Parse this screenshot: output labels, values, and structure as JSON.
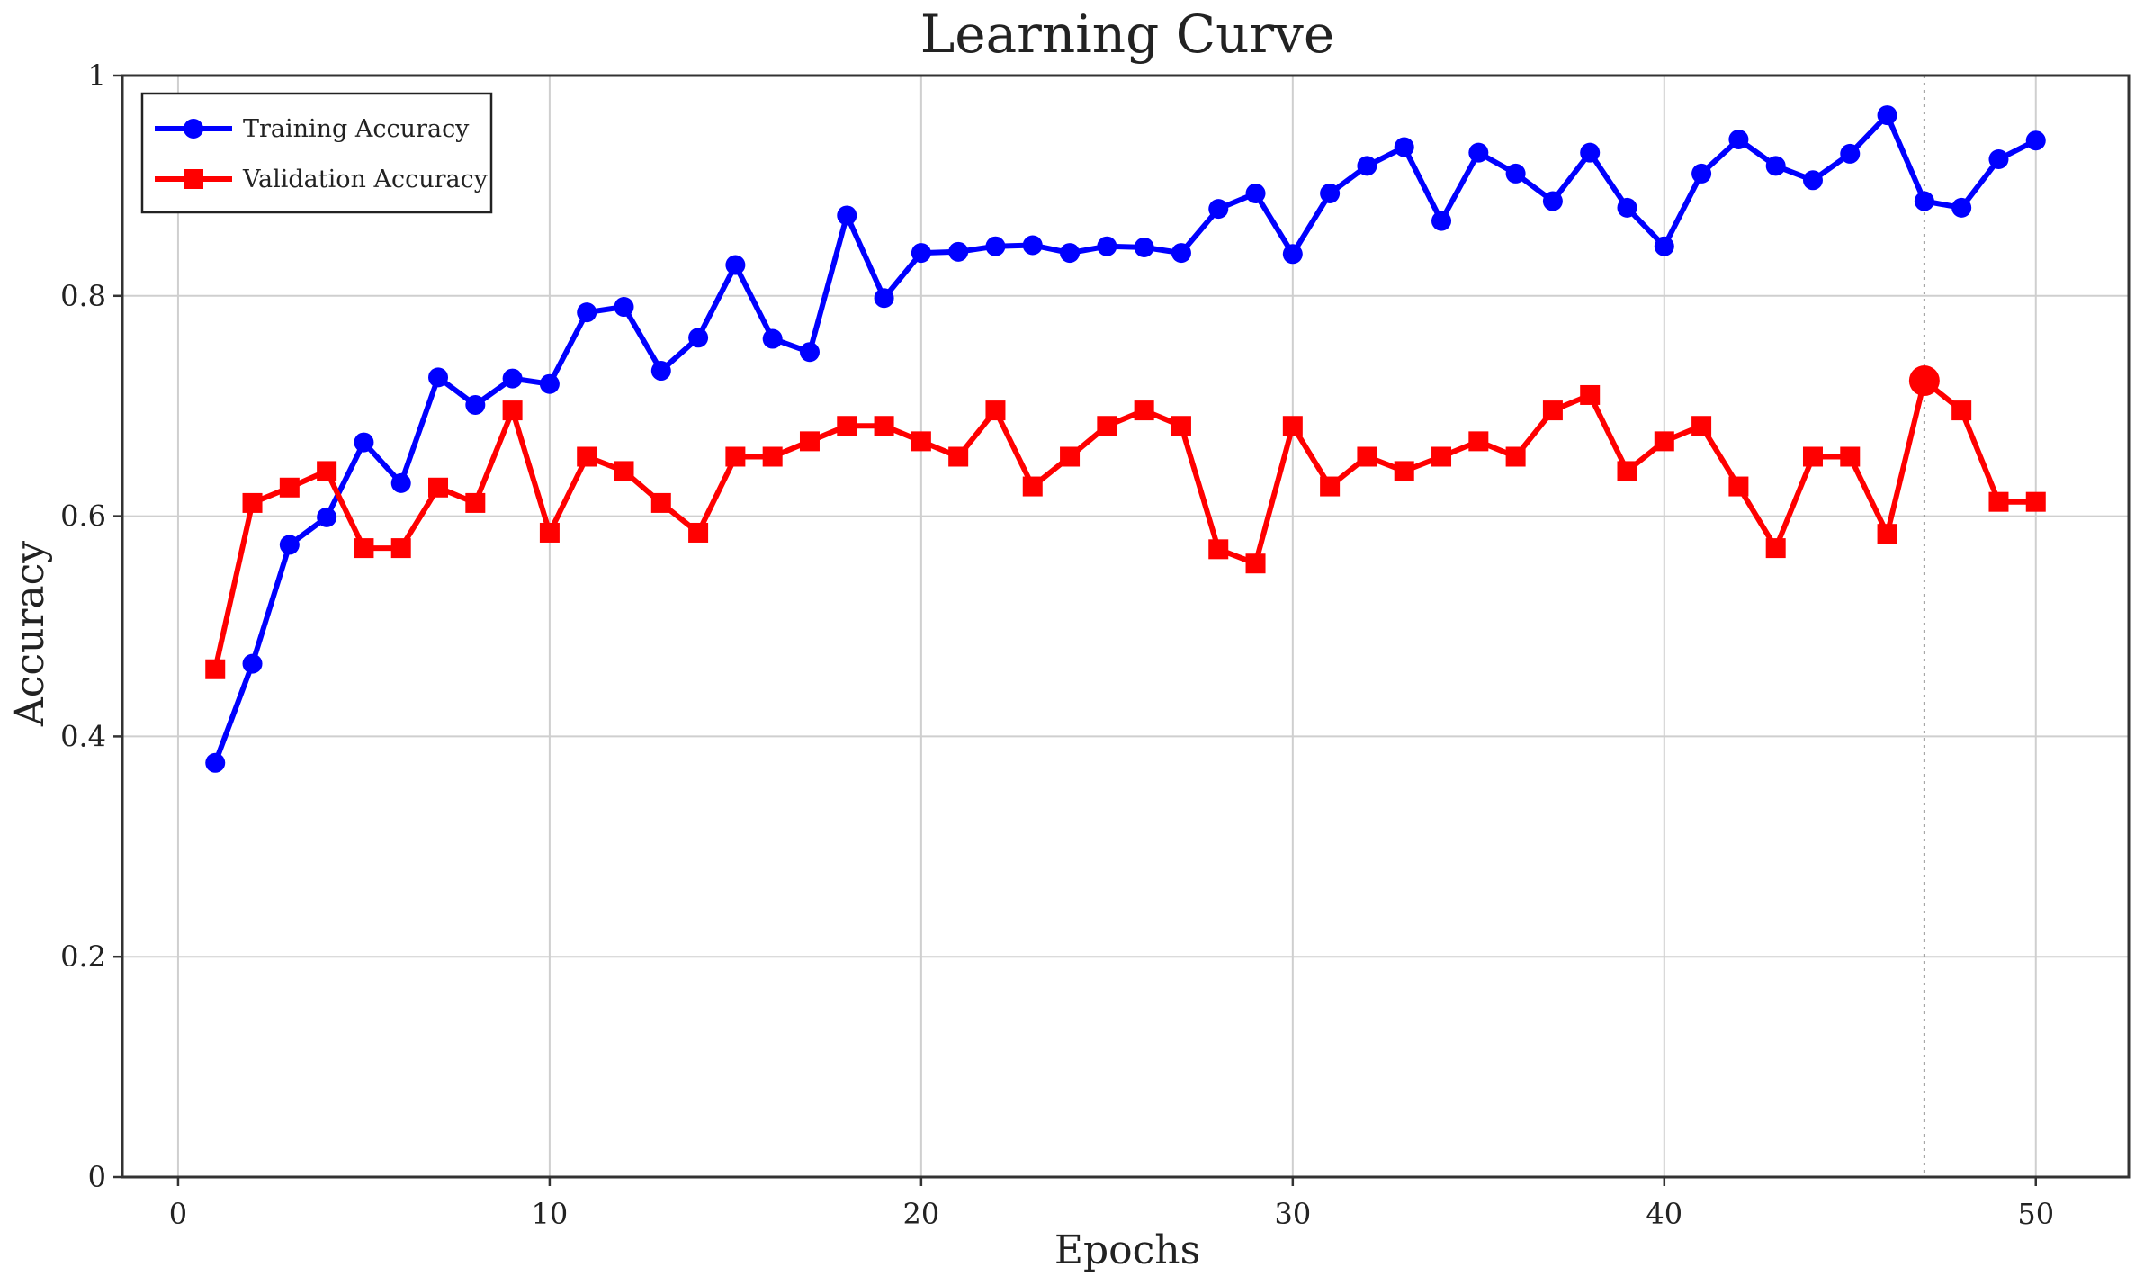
{
  "chart_data": {
    "type": "line",
    "title": "Learning Curve",
    "xlabel": "Epochs",
    "ylabel": "Accuracy",
    "xlim": [
      -1.5,
      52.5
    ],
    "ylim": [
      0,
      1
    ],
    "xticks": [
      0,
      10,
      20,
      30,
      40,
      50
    ],
    "yticks": [
      0,
      0.2,
      0.4,
      0.6,
      0.8,
      1
    ],
    "ytick_labels": [
      "0",
      "0.2",
      "0.4",
      "0.6",
      "0.8",
      "1"
    ],
    "grid": true,
    "legend_position": "top-left",
    "x": [
      1,
      2,
      3,
      4,
      5,
      6,
      7,
      8,
      9,
      10,
      11,
      12,
      13,
      14,
      15,
      16,
      17,
      18,
      19,
      20,
      21,
      22,
      23,
      24,
      25,
      26,
      27,
      28,
      29,
      30,
      31,
      32,
      33,
      34,
      35,
      36,
      37,
      38,
      39,
      40,
      41,
      42,
      43,
      44,
      45,
      46,
      47,
      48,
      49,
      50
    ],
    "series": [
      {
        "name": "Training Accuracy",
        "color": "#0000ff",
        "marker": "circle",
        "values": [
          0.376,
          0.466,
          0.574,
          0.599,
          0.667,
          0.63,
          0.726,
          0.701,
          0.725,
          0.72,
          0.785,
          0.79,
          0.732,
          0.762,
          0.828,
          0.761,
          0.749,
          0.873,
          0.798,
          0.839,
          0.84,
          0.845,
          0.846,
          0.839,
          0.845,
          0.844,
          0.839,
          0.879,
          0.893,
          0.838,
          0.893,
          0.918,
          0.935,
          0.868,
          0.93,
          0.911,
          0.886,
          0.93,
          0.88,
          0.845,
          0.911,
          0.942,
          0.918,
          0.905,
          0.929,
          0.964,
          0.886,
          0.88,
          0.924,
          0.941
        ]
      },
      {
        "name": "Validation Accuracy",
        "color": "#ff0000",
        "marker": "square",
        "values": [
          0.461,
          0.612,
          0.626,
          0.641,
          0.571,
          0.571,
          0.626,
          0.612,
          0.696,
          0.585,
          0.654,
          0.641,
          0.612,
          0.585,
          0.654,
          0.654,
          0.668,
          0.682,
          0.682,
          0.668,
          0.654,
          0.696,
          0.627,
          0.654,
          0.682,
          0.696,
          0.682,
          0.57,
          0.557,
          0.682,
          0.627,
          0.654,
          0.641,
          0.654,
          0.668,
          0.654,
          0.696,
          0.71,
          0.641,
          0.668,
          0.682,
          0.627,
          0.571,
          0.654,
          0.654,
          0.584,
          0.723,
          0.696,
          0.613,
          0.613
        ]
      }
    ],
    "highlight": {
      "series": "Validation Accuracy",
      "x": 47,
      "y": 0.723,
      "color": "#ff0000",
      "vline": true
    }
  }
}
